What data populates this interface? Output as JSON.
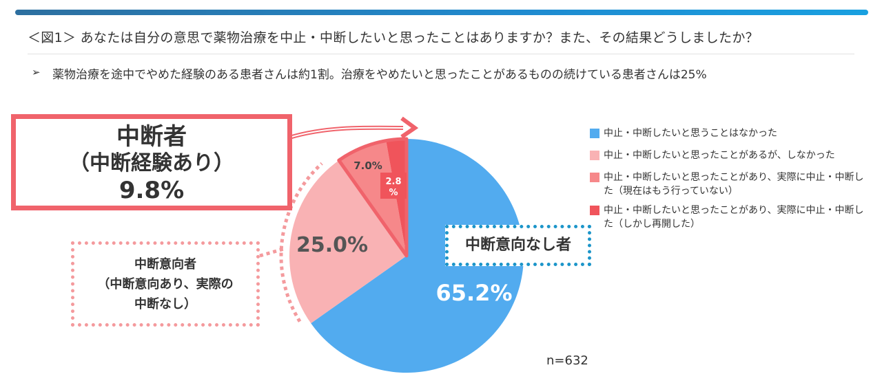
{
  "header": {
    "title": "＜図1＞ あなたは自分の意思で薬物治療を中止・中断したいと思ったことはありますか？また、その結果どうしましたか？",
    "bullet": "➢",
    "summary": "薬物治療を途中でやめた経験のある患者さんは約1割。治療をやめたいと思ったことがあるものの続けている患者さんは25%"
  },
  "callouts": {
    "dropout": {
      "line1": "中断者",
      "line2": "（中断経験あり）",
      "line3": "9.8%"
    },
    "intent": {
      "line1": "中断意向者",
      "line2": "（中断意向あり、実際の",
      "line3": "中断なし）"
    },
    "none": {
      "label": "中断意向なし者"
    }
  },
  "sample": {
    "n": "n=632"
  },
  "colors": {
    "blue": "#52abef",
    "light_pink": "#f9b2b4",
    "salmon": "#f6888a",
    "red": "#f0545b",
    "callout_red": "#f0636b",
    "callout_pink": "#f49a9d",
    "callout_blue": "#1c95c9"
  },
  "chart_data": {
    "type": "pie",
    "start": "12 o'clock, clockwise",
    "slices": [
      {
        "label": "中止・中断したいと思うことはなかった",
        "value": 65.2,
        "display": "65.2%",
        "color": "#52abef"
      },
      {
        "label": "中止・中断したいと思ったことがあるが、しなかった",
        "value": 25.0,
        "display": "25.0%",
        "color": "#f9b2b4"
      },
      {
        "label": "中止・中断したいと思ったことがあり、実際に中止・中断した（現在はもう行っていない）",
        "value": 7.0,
        "display": "7.0%",
        "color": "#f6888a"
      },
      {
        "label": "中止・中断したいと思ったことがあり、実際に中止・中断した（しかし再開した）",
        "value": 2.8,
        "display_line1": "2.8",
        "display_line2": "%",
        "color": "#f0545b"
      }
    ],
    "legend_position": "right"
  }
}
